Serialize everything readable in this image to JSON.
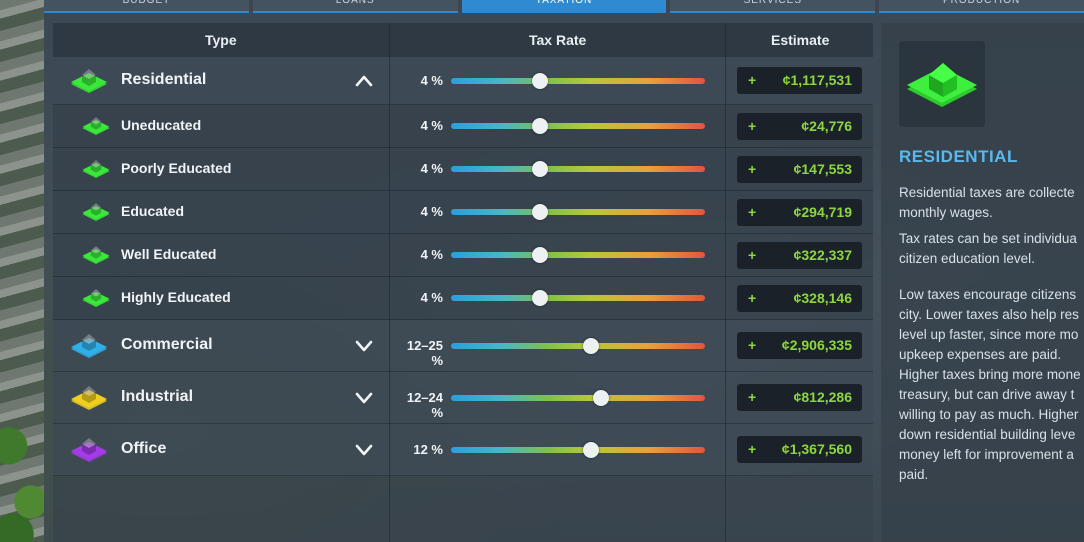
{
  "tabs": [
    {
      "label": "BUDGET"
    },
    {
      "label": "LOANS"
    },
    {
      "label": "TAXATION"
    },
    {
      "label": "SERVICES"
    },
    {
      "label": "PRODUCTION"
    }
  ],
  "table": {
    "headers": {
      "type": "Type",
      "tax_rate": "Tax Rate",
      "estimate": "Estimate"
    },
    "rows": [
      {
        "label": "Residential",
        "rate": "4 %",
        "sign": "+",
        "estimate": "¢1,117,531",
        "level": 0.35,
        "icon": "residential-icon",
        "color": "#3ae83a",
        "expand": "collapse-chevron-up-icon"
      },
      {
        "label": "Uneducated",
        "rate": "4 %",
        "sign": "+",
        "estimate": "¢24,776",
        "level": 0.35,
        "icon": "residential-icon",
        "color": "#3ae83a"
      },
      {
        "label": "Poorly Educated",
        "rate": "4 %",
        "sign": "+",
        "estimate": "¢147,553",
        "level": 0.35,
        "icon": "residential-icon",
        "color": "#3ae83a"
      },
      {
        "label": "Educated",
        "rate": "4 %",
        "sign": "+",
        "estimate": "¢294,719",
        "level": 0.35,
        "icon": "residential-icon",
        "color": "#3ae83a"
      },
      {
        "label": "Well Educated",
        "rate": "4 %",
        "sign": "+",
        "estimate": "¢322,337",
        "level": 0.35,
        "icon": "residential-icon",
        "color": "#3ae83a"
      },
      {
        "label": "Highly Educated",
        "rate": "4 %",
        "sign": "+",
        "estimate": "¢328,146",
        "level": 0.35,
        "icon": "residential-icon",
        "color": "#3ae83a"
      },
      {
        "label": "Commercial",
        "rate": "12–25 %",
        "sign": "+",
        "estimate": "¢2,906,335",
        "level": 0.55,
        "icon": "commercial-icon",
        "color": "#2fb0ea",
        "expand": "expand-chevron-down-icon"
      },
      {
        "label": "Industrial",
        "rate": "12–24 %",
        "sign": "+",
        "estimate": "¢812,286",
        "level": 0.59,
        "icon": "industrial-icon",
        "color": "#f0d01e",
        "expand": "expand-chevron-down-icon"
      },
      {
        "label": "Office",
        "rate": "12 %",
        "sign": "+",
        "estimate": "¢1,367,560",
        "level": 0.55,
        "icon": "office-icon",
        "color": "#a43ae8",
        "expand": "expand-chevron-down-icon"
      }
    ]
  },
  "sidebar": {
    "icon": "residential-icon",
    "title": "RESIDENTIAL",
    "paragraphs": [
      [
        "Residential taxes are collecte",
        "monthly wages."
      ],
      [
        "Tax rates can be set individua",
        "citizen education level."
      ],
      [
        "Low taxes encourage citizens",
        "city. Lower taxes also help res",
        "level up faster, since more mo",
        "upkeep expenses are paid."
      ],
      [
        "Higher taxes bring more mone",
        "treasury, but can drive away t",
        "willing to pay as much. Higher",
        "down residential building leve",
        "money left for improvement a",
        "paid."
      ]
    ]
  }
}
